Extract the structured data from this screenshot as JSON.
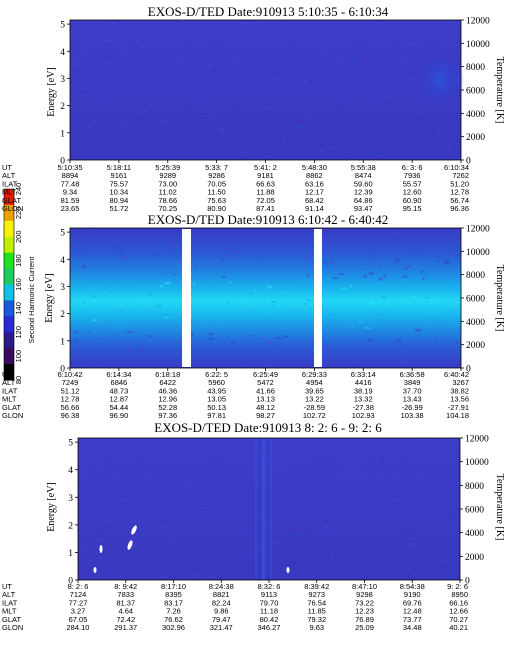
{
  "chart_data": {
    "type": "heatmap",
    "colorbar": {
      "label": "Second Harmonic Current",
      "ticks": [
        "80",
        "100",
        "120",
        "140",
        "160",
        "180",
        "200",
        "220",
        "240"
      ],
      "colors": [
        "#000000",
        "#3a0a5c",
        "#2a1a8a",
        "#2a2ad0",
        "#1a5ad8",
        "#10c0e8",
        "#20c860",
        "#20e020",
        "#c0f000",
        "#f8f010",
        "#f0a000",
        "#e02000"
      ]
    },
    "panels": [
      {
        "title": "EXOS-D/TED   Date:910913  5:10:35 - 6:10:34",
        "ylabel": "Energy [eV]",
        "yticks": [
          "0",
          "1",
          "2",
          "3",
          "4",
          "5"
        ],
        "ylabel_right": "Temperature [K]",
        "yticks_right": [
          "0",
          "2000",
          "4000",
          "6000",
          "8000",
          "10000",
          "12000"
        ],
        "row_names": [
          "UT",
          "ALT",
          "ILAT",
          "MLT",
          "GLAT",
          "GLON"
        ],
        "columns": [
          [
            "5:10:35",
            "8894",
            "77.48",
            "9.34",
            "81.59",
            "23.65"
          ],
          [
            "5:18:11",
            "9161",
            "75.57",
            "10.34",
            "80.94",
            "51.72"
          ],
          [
            "5:25:39",
            "9289",
            "73.00",
            "11.02",
            "78.66",
            "70.25"
          ],
          [
            "5:33: 7",
            "9286",
            "70.05",
            "11.50",
            "75.63",
            "80.90"
          ],
          [
            "5:41: 2",
            "9181",
            "66.63",
            "11.88",
            "72.05",
            "87.41"
          ],
          [
            "5:48:30",
            "8862",
            "63.16",
            "12.17",
            "68.42",
            "91.14"
          ],
          [
            "5:55:38",
            "8474",
            "59.60",
            "12.39",
            "64.86",
            "93.47"
          ],
          [
            "6: 3: 6",
            "7936",
            "55.57",
            "12.60",
            "60.90",
            "95.15"
          ],
          [
            "6:10:34",
            "7262",
            "51.20",
            "12.78",
            "56.74",
            "96.36"
          ]
        ]
      },
      {
        "title": "EXOS-D/TED   Date:910913  6:10:42 - 6:40:42",
        "ylabel": "Energy [eV]",
        "yticks": [
          "0",
          "1",
          "2",
          "3",
          "4",
          "5"
        ],
        "ylabel_right": "Temperature [K]",
        "yticks_right": [
          "0",
          "2000",
          "4000",
          "6000",
          "8000",
          "10000",
          "12000"
        ],
        "row_names": [
          "UT",
          "ALT",
          "ILAT",
          "MLT",
          "GLAT",
          "GLON"
        ],
        "columns": [
          [
            "6:10:42",
            "7249",
            "51.12",
            "12.78",
            "56.66",
            "96.38"
          ],
          [
            "6:14:34",
            "6846",
            "48.73",
            "12.87",
            "54.44",
            "96.90"
          ],
          [
            "6:18:18",
            "6422",
            "46.36",
            "12.96",
            "52.28",
            "97.36"
          ],
          [
            "6:22: 5",
            "5960",
            "43.95",
            "13.05",
            "50.13",
            "97.81"
          ],
          [
            "6:25:49",
            "5472",
            "41.66",
            "13.13",
            "48.12",
            "98.27"
          ],
          [
            "6:29:33",
            "4954",
            "39.65",
            "13.22",
            "-28.59",
            "102.72"
          ],
          [
            "6:33:14",
            "4416",
            "38.19",
            "13.32",
            "-27.38",
            "102.93"
          ],
          [
            "6:36:58",
            "3849",
            "37.70",
            "13.43",
            "-26.99",
            "103.38"
          ],
          [
            "6:40:42",
            "3267",
            "38.82",
            "13.56",
            "-27.91",
            "104.18"
          ]
        ]
      },
      {
        "title": "EXOS-D/TED   Date:910913  8: 2: 6 - 9: 2: 6",
        "ylabel": "Energy [eV]",
        "yticks": [
          "0",
          "1",
          "2",
          "3",
          "4",
          "5"
        ],
        "ylabel_right": "Temperature [K]",
        "yticks_right": [
          "0",
          "2000",
          "4000",
          "6000",
          "8000",
          "10000",
          "12000"
        ],
        "row_names": [
          "UT",
          "ALT",
          "ILAT",
          "MLT",
          "GLAT",
          "GLON"
        ],
        "columns": [
          [
            "8: 2: 6",
            "7124",
            "77.27",
            "3.27",
            "67.05",
            "284.10"
          ],
          [
            "8: 9:42",
            "7833",
            "81.37",
            "4.64",
            "72.42",
            "291.37"
          ],
          [
            "8:17:10",
            "8395",
            "83.17",
            "7.26",
            "76.62",
            "302.96"
          ],
          [
            "8:24:38",
            "8821",
            "82.24",
            "9.86",
            "79.47",
            "321.47"
          ],
          [
            "8:32: 6",
            "9113",
            "79.70",
            "11.18",
            "80.42",
            "346.27"
          ],
          [
            "8:39:42",
            "9273",
            "76.54",
            "11.85",
            "79.32",
            "9.63"
          ],
          [
            "8:47:10",
            "9298",
            "73.22",
            "12.23",
            "76.89",
            "25.09"
          ],
          [
            "8:54:38",
            "9190",
            "69.76",
            "12.48",
            "73.77",
            "34.48"
          ],
          [
            "9: 2: 6",
            "8950",
            "66.16",
            "12.66",
            "70.27",
            "40.21"
          ]
        ]
      }
    ]
  }
}
